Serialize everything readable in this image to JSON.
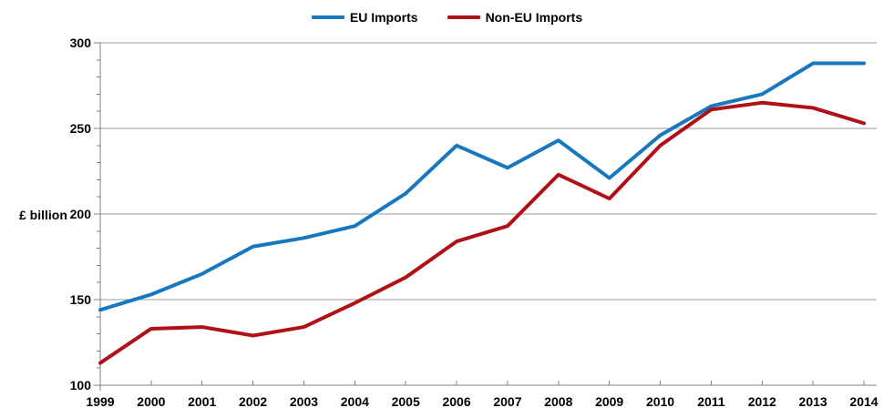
{
  "colors": {
    "axis": "#808080",
    "gridline": "#9b9b9b",
    "text": "#000000"
  },
  "chart_data": {
    "type": "line",
    "title": "",
    "xlabel": "",
    "ylabel": "£ billion",
    "x": [
      "1999",
      "2000",
      "2001",
      "2002",
      "2003",
      "2004",
      "2005",
      "2006",
      "2007",
      "2008",
      "2009",
      "2010",
      "2011",
      "2012",
      "2013",
      "2014"
    ],
    "ylim": [
      100,
      300
    ],
    "yticks": [
      100,
      150,
      200,
      250,
      300
    ],
    "y_minor_step": 10,
    "grid": "horizontal-major",
    "legend_position": "top-center",
    "series": [
      {
        "name": "EU Imports",
        "color": "#1878be",
        "values": [
          144,
          153,
          165,
          181,
          186,
          193,
          212,
          240,
          227,
          243,
          221,
          246,
          263,
          270,
          288,
          288
        ]
      },
      {
        "name": "Non-EU Imports",
        "color": "#b01116",
        "values": [
          113,
          133,
          134,
          129,
          134,
          148,
          163,
          184,
          193,
          223,
          209,
          240,
          261,
          265,
          262,
          253
        ]
      }
    ]
  }
}
